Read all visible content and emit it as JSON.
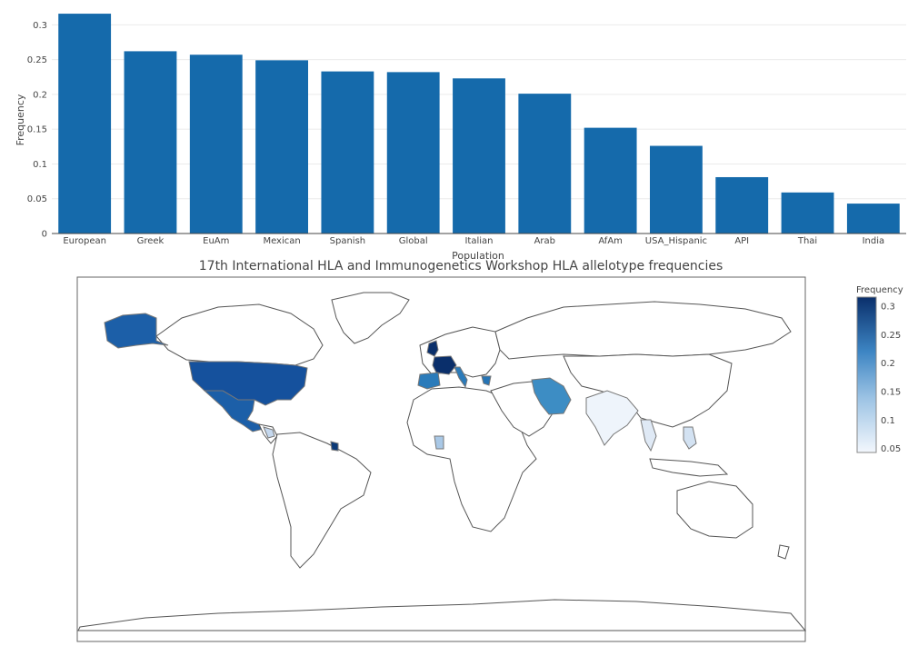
{
  "chart_data": [
    {
      "type": "bar",
      "categories": [
        "European",
        "Greek",
        "EuAm",
        "Mexican",
        "Spanish",
        "Global",
        "Italian",
        "Arab",
        "AfAm",
        "USA_Hispanic",
        "API",
        "Thai",
        "India"
      ],
      "values": [
        0.316,
        0.262,
        0.257,
        0.249,
        0.233,
        0.232,
        0.223,
        0.201,
        0.152,
        0.126,
        0.081,
        0.059,
        0.043
      ],
      "title": "",
      "xlabel": "Population",
      "ylabel": "Frequency",
      "ylim": [
        0,
        0.32
      ],
      "yticks": [
        0,
        0.05,
        0.1,
        0.15,
        0.2,
        0.25,
        0.3
      ],
      "ytick_labels": [
        "0",
        "0.05",
        "0.1",
        "0.15",
        "0.2",
        "0.25",
        "0.3"
      ],
      "grid": true,
      "bar_color": "#156aab"
    },
    {
      "type": "heatmap",
      "title": "17th International HLA and Immunogenetics Workshop HLA allelotype frequencies",
      "colorbar": {
        "title": "Frequency",
        "range": [
          0.043,
          0.316
        ],
        "ticks": [
          0.05,
          0.1,
          0.15,
          0.2,
          0.25,
          0.3
        ],
        "tick_labels": [
          "0.05",
          "0.1",
          "0.15",
          "0.2",
          "0.25",
          "0.3"
        ],
        "colors": [
          "#f3f7fd",
          "#0a2f6b"
        ]
      }
    }
  ]
}
